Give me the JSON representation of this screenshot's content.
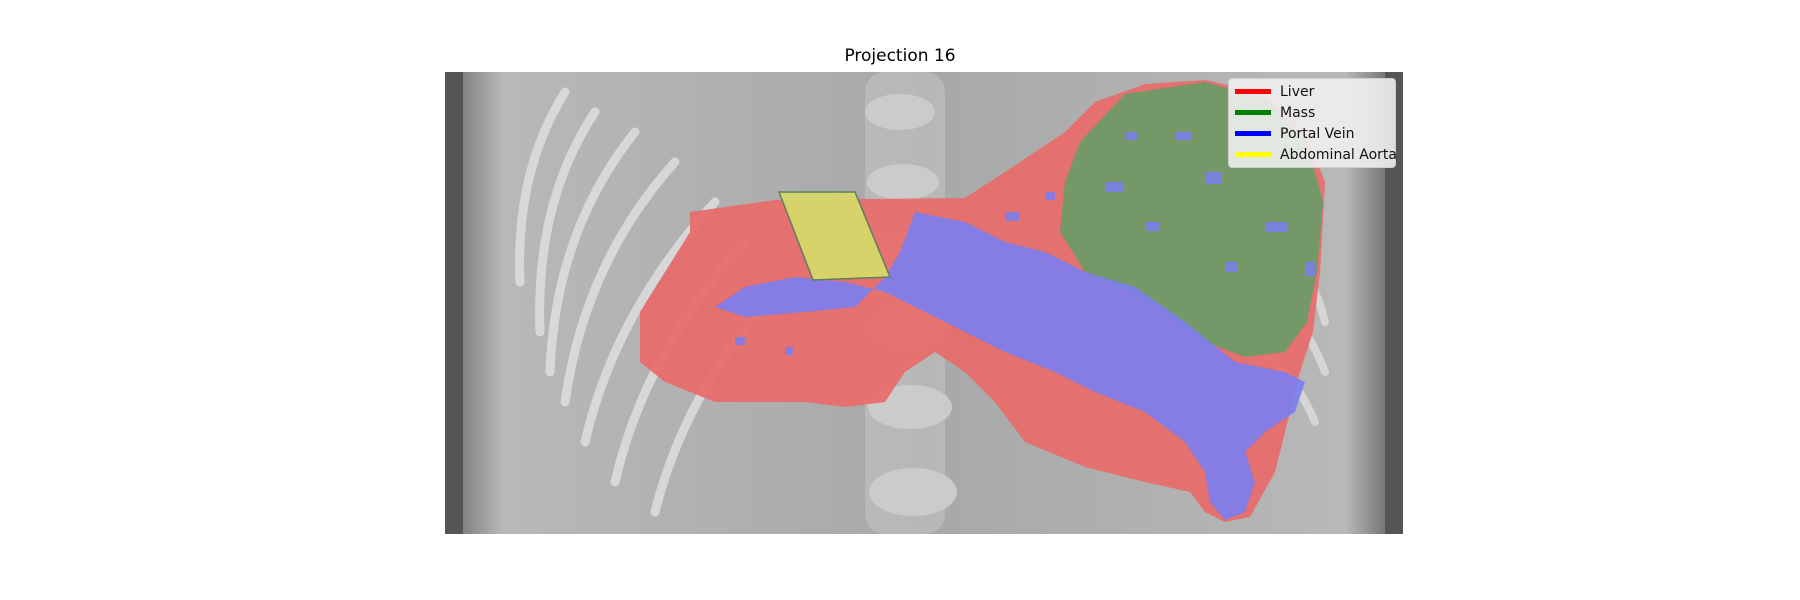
{
  "figure": {
    "title": "Projection 16"
  },
  "legend": {
    "entries": [
      {
        "label": "Liver",
        "color": "#ff0000"
      },
      {
        "label": "Mass",
        "color": "#008000"
      },
      {
        "label": "Portal Vein",
        "color": "#0000ff"
      },
      {
        "label": "Abdominal Aorta",
        "color": "#ffff00"
      }
    ]
  },
  "overlay_colors": {
    "liver": "#e86a6a",
    "mass": "#6f9a67",
    "portal_vein": "#7a7ef0",
    "abdominal_aorta": "#d8d86a",
    "scan_background": "#9a9a9a"
  }
}
